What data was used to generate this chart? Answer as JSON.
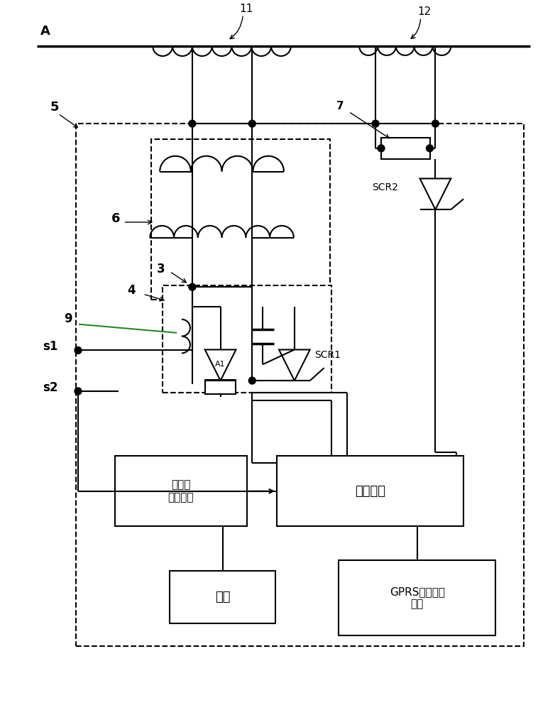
{
  "bg_color": "#ffffff",
  "lc": "#000000",
  "green": "#228B22",
  "label_A": "A",
  "label_11": "11",
  "label_12": "12",
  "label_5": "5",
  "label_6": "6",
  "label_7": "7",
  "label_9": "9",
  "label_3": "3",
  "label_4": "4",
  "label_s1": "s1",
  "label_s2": "s2",
  "label_SCR1": "SCR1",
  "label_SCR2": "SCR2",
  "label_A1": "A1",
  "label_display": "显示与\n输入单元",
  "label_control": "控制装置",
  "label_power": "电源",
  "label_gprs": "GPRS远程发送\n模块"
}
